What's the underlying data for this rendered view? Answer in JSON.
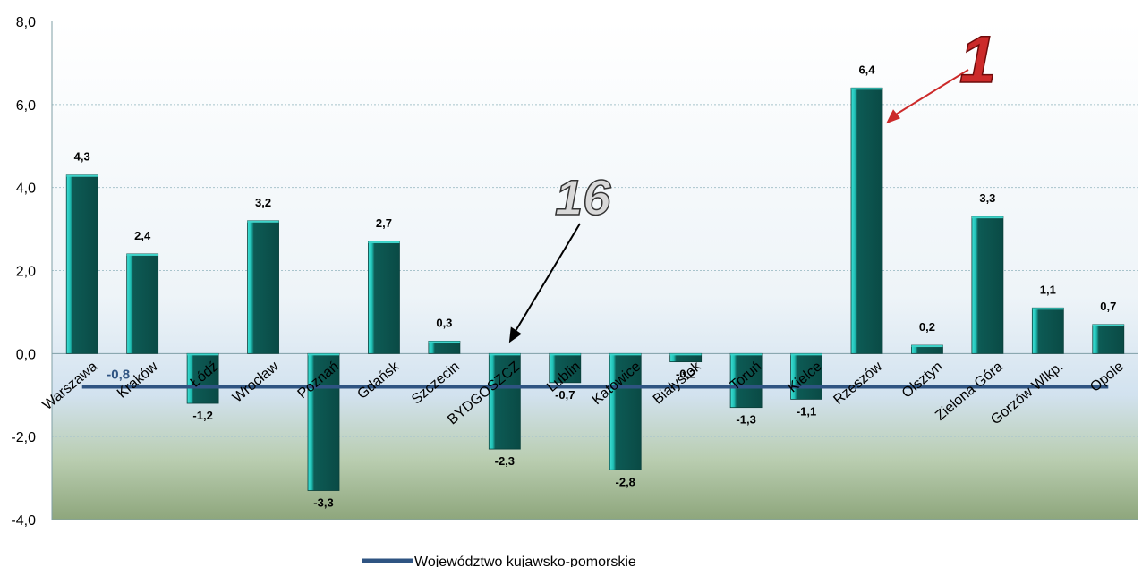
{
  "chart_data": {
    "type": "bar",
    "categories": [
      "Warszawa",
      "Kraków",
      "Łódź",
      "Wrocław",
      "Poznań",
      "Gdańsk",
      "Szczecin",
      "BYDGOSZCZ",
      "Lublin",
      "Katowice",
      "Białystok",
      "Toruń",
      "Kielce",
      "Rzeszów",
      "Olsztyn",
      "Zielona Góra",
      "Gorzów Wlkp.",
      "Opole"
    ],
    "values": [
      4.3,
      2.4,
      -1.2,
      3.2,
      -3.3,
      2.7,
      0.3,
      -2.3,
      -0.7,
      -2.8,
      -0.2,
      -1.3,
      -1.1,
      6.4,
      0.2,
      3.3,
      1.1,
      0.7
    ],
    "data_labels": [
      "4,3",
      "2,4",
      "-1,2",
      "3,2",
      "-3,3",
      "2,7",
      "0,3",
      "-2,3",
      "-0,7",
      "-2,8",
      "-0,2",
      "-1,3",
      "-1,1",
      "6,4",
      "0,2",
      "3,3",
      "1,1",
      "0,7"
    ],
    "series": [
      {
        "name": "Województwo kujawsko-pomorskie",
        "type": "line",
        "value": -0.8,
        "value_label": "-0,8",
        "color": "#2f5482"
      }
    ],
    "ylim": [
      -4.0,
      8.0
    ],
    "yticks": [
      8.0,
      6.0,
      4.0,
      2.0,
      0.0,
      -2.0,
      -4.0
    ],
    "ytick_labels": [
      "8,0",
      "6,0",
      "4,0",
      "2,0",
      "0,0",
      "-2,0",
      "-4,0"
    ],
    "grid": true,
    "legend_placement": "bottom",
    "bar_color": "#1fbfb4",
    "bar_dark_color": "#0b4f4a",
    "annotations": [
      {
        "text": "1",
        "color": "#cc2a2a",
        "points_to": "Rzeszów"
      },
      {
        "text": "16",
        "color": "#d8d8d8",
        "points_to": "BYDGOSZCZ"
      }
    ]
  }
}
